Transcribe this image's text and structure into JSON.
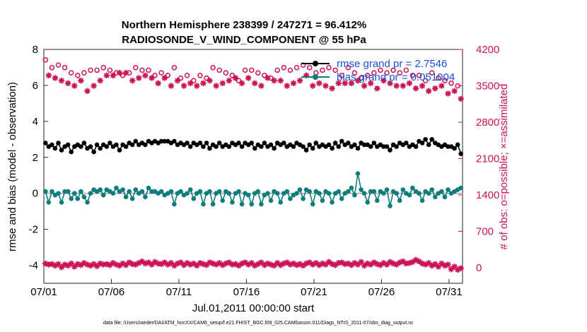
{
  "chart_data": {
    "type": "line",
    "title_line1": "Northern Hemisphere 238399 / 247271 = 96.412%",
    "title_line2": "RADIOSONDE_V_WIND_COMPONENT @ 55 hPa",
    "xlabel": "Jul.01,2011 00:00:00 start",
    "ylabel_left": "rmse and bias (model - observation)",
    "ylabel_right": "# of obs: o=possible; ×=assimilated",
    "footer": "data file: /Users/raeder/DAI/ATM_forcXX/CAM6_setup/f.e21.FHIST_BGC.f09_025.CAM6assim.011/Diags_NTrS_2011-07/obs_diag_output.nc",
    "xlim": [
      0,
      31
    ],
    "x_tick_values": [
      0,
      5,
      10,
      15,
      20,
      25,
      30
    ],
    "x_tick_labels": [
      "07/01",
      "07/06",
      "07/11",
      "07/16",
      "07/21",
      "07/26",
      "07/31"
    ],
    "ylim_left": [
      -5,
      8
    ],
    "y_ticks_left": [
      -4,
      -2,
      0,
      2,
      4,
      6,
      8
    ],
    "ylim_right": [
      -300,
      4200
    ],
    "y_ticks_right": [
      0,
      700,
      1400,
      2100,
      2800,
      3500,
      4200
    ],
    "rmse_grand": "2.7546",
    "bias_grand": "0.051004",
    "legend": [
      {
        "label": "rmse grand pr = 2.7546",
        "color": "#000000"
      },
      {
        "label": "bias grand pr = 0.051004",
        "color": "#0e7c7b"
      }
    ],
    "series": [
      {
        "name": "rmse",
        "color": "#000000",
        "axis": "left",
        "values": [
          2.8,
          2.6,
          2.7,
          2.5,
          2.8,
          2.4,
          2.6,
          2.7,
          2.3,
          2.6,
          2.7,
          2.6,
          2.8,
          2.5,
          2.6,
          2.3,
          2.7,
          2.5,
          2.7,
          2.6,
          2.8,
          2.6,
          2.7,
          2.4,
          2.7,
          2.6,
          2.8,
          2.7,
          2.9,
          2.7,
          2.8,
          2.7,
          2.9,
          2.8,
          2.9,
          2.8,
          2.9,
          2.9,
          2.9,
          2.8,
          2.9,
          2.7,
          2.8,
          2.7,
          2.8,
          2.6,
          2.8,
          2.7,
          2.8,
          2.6,
          2.8,
          2.5,
          2.7,
          2.6,
          2.8,
          2.6,
          2.7,
          2.6,
          2.8,
          2.7,
          2.8,
          2.6,
          2.8,
          2.7,
          2.8,
          2.5,
          2.7,
          2.6,
          2.8,
          2.6,
          2.7,
          2.5,
          2.8,
          2.7,
          2.8,
          2.6,
          2.7,
          2.6,
          2.8,
          2.7,
          2.6,
          2.4,
          2.7,
          2.5,
          2.8,
          2.6,
          2.7,
          2.6,
          2.7,
          2.5,
          2.8,
          2.6,
          2.9,
          2.7,
          2.8,
          2.6,
          2.7,
          2.5,
          2.8,
          2.7,
          2.7,
          2.6,
          2.8,
          2.6,
          2.7,
          2.6,
          2.6,
          2.4,
          2.7,
          2.6,
          2.8,
          2.7,
          2.8,
          2.6,
          2.7,
          2.6,
          2.9,
          2.8,
          3.0,
          2.7,
          3.0,
          2.8,
          2.7,
          2.6,
          2.7,
          2.6,
          2.6,
          2.5,
          2.7,
          2.2
        ]
      },
      {
        "name": "bias",
        "color": "#0e7c7b",
        "axis": "left",
        "values": [
          0.1,
          -0.5,
          0.1,
          -0.1,
          0.0,
          -0.5,
          0.1,
          0.1,
          -0.3,
          0.0,
          -0.3,
          0.1,
          -0.2,
          -0.5,
          0.0,
          0.2,
          0.1,
          0.2,
          -0.1,
          0.2,
          0.1,
          0.0,
          0.3,
          0.1,
          0.2,
          -0.2,
          0.1,
          -0.3,
          0.2,
          0.0,
          0.1,
          -0.2,
          0.3,
          0.1,
          0.1,
          0.0,
          0.1,
          -0.1,
          0.0,
          0.1,
          -0.6,
          0.0,
          0.1,
          -0.1,
          0.0,
          0.2,
          -0.3,
          0.0,
          0.1,
          -0.6,
          0.0,
          0.1,
          -0.6,
          0.0,
          0.1,
          -0.4,
          0.1,
          0.0,
          -0.5,
          0.0,
          0.1,
          -0.6,
          0.0,
          -0.1,
          -0.6,
          0.0,
          0.1,
          -0.6,
          -0.1,
          0.0,
          -0.4,
          0.1,
          0.0,
          -0.5,
          0.0,
          0.1,
          -0.3,
          -0.1,
          0.0,
          0.2,
          -0.3,
          0.2,
          0.1,
          -0.6,
          0.1,
          0.0,
          -0.4,
          0.1,
          0.0,
          -0.5,
          0.0,
          0.1,
          -0.3,
          0.0,
          0.1,
          0.3,
          -0.1,
          1.1,
          0.2,
          0.0,
          -0.5,
          0.1,
          0.1,
          -0.4,
          0.1,
          0.0,
          0.2,
          -0.7,
          0.1,
          0.0,
          -0.4,
          0.2,
          0.0,
          -0.1,
          0.3,
          0.1,
          0.0,
          -0.4,
          0.1,
          0.0,
          0.2,
          -0.2,
          0.0,
          0.1,
          -0.2,
          0.2,
          0.0,
          0.1,
          0.2,
          0.3
        ]
      },
      {
        "name": "obs possible",
        "color": "#cc1155",
        "axis": "right",
        "values": [
          4000,
          3800,
          3850,
          3650,
          3900,
          3700,
          3850,
          3600,
          3750,
          3500,
          3700,
          3850,
          3750,
          3550,
          3800,
          3650,
          3800,
          3750,
          3850,
          3700,
          3800,
          3650,
          3750,
          3600,
          3700,
          3850,
          3750,
          3800,
          3850,
          3900,
          3800,
          3950,
          3800,
          3850,
          3700,
          3850,
          3750,
          3800,
          3700,
          3900,
          3850,
          3750,
          3650,
          3800,
          3700,
          3850,
          3600,
          3750,
          3700,
          3800,
          3650,
          3800,
          3850,
          3700,
          3800,
          3650,
          3750,
          3800,
          3700,
          3850,
          3600,
          3750,
          3800,
          3700,
          3800,
          3650,
          3750,
          3850,
          3700,
          3800,
          3650,
          3700,
          3800,
          3700,
          3850,
          3750,
          3800,
          3650,
          3850,
          3750,
          3900,
          3700,
          3850,
          3600,
          3750,
          3700,
          3800,
          3650,
          3850,
          3700,
          3800,
          3750,
          3700,
          3650,
          3850,
          3700,
          3750,
          3800,
          3650,
          3850,
          3700,
          3800,
          3750,
          3650,
          3800,
          3700,
          3750,
          3600,
          3800,
          3700,
          3750,
          3650,
          3800,
          3600,
          3700,
          3550,
          3700,
          3650,
          3600,
          3550,
          3750,
          3500,
          3650,
          3500,
          3600,
          3450,
          3550,
          3400,
          3500,
          3450
        ]
      },
      {
        "name": "obs assimilated",
        "color": "#cc1155",
        "axis": "right",
        "values": [
          3900,
          3700,
          3600,
          3650,
          3550,
          3600,
          3450,
          3550,
          3600,
          3500,
          3450,
          3600,
          3550,
          3400,
          3650,
          3500,
          3550,
          3600,
          3650,
          3700,
          3750,
          3700,
          3650,
          3750,
          3700,
          3750,
          3650,
          3600,
          3700,
          3650,
          3600,
          3700,
          3550,
          3650,
          3600,
          3550,
          3600,
          3650,
          3600,
          3500,
          3650,
          3600,
          3550,
          3500,
          3600,
          3550,
          3650,
          3500,
          3600,
          3550,
          3650,
          3600,
          3550,
          3500,
          3600,
          3550,
          3650,
          3600,
          3550,
          3650,
          3600,
          3550,
          3500,
          3650,
          3600,
          3550,
          3600,
          3500,
          3550,
          3650,
          3700,
          3600,
          3450,
          3600,
          3550,
          3500,
          3650,
          3550,
          3450,
          3600,
          3650,
          3700,
          3550,
          3500,
          3600,
          3550,
          3650,
          3500,
          3550,
          3450,
          3600,
          3550,
          3500,
          3550,
          3600,
          3550,
          3500,
          3600,
          3550,
          3500,
          3450,
          3550,
          3500,
          3450,
          3550,
          3600,
          3500,
          3550,
          3600,
          3500,
          3550,
          3500,
          3450,
          3550,
          3500,
          3450,
          3550,
          3500,
          3450,
          3400,
          3550,
          3450,
          3400,
          3500,
          3450,
          3350,
          3300,
          3400,
          3300,
          3250
        ]
      },
      {
        "name": "obs possible (lower)",
        "color": "#cc1155",
        "axis": "right",
        "values": [
          80,
          60,
          70,
          40,
          70,
          10,
          60,
          40,
          80,
          20,
          70,
          50,
          90,
          60,
          40,
          70,
          30,
          80,
          60,
          70,
          50,
          90,
          60,
          40,
          80,
          50,
          100,
          70,
          60,
          90,
          120,
          80,
          100,
          60,
          110,
          80,
          70,
          100,
          60,
          90,
          40,
          80,
          100,
          50,
          90,
          60,
          80,
          40,
          90,
          70,
          50,
          100,
          80,
          60,
          90,
          50,
          80,
          100,
          60,
          70,
          40,
          80,
          100,
          60,
          90,
          40,
          70,
          100,
          50,
          80,
          60,
          40,
          90,
          50,
          80,
          100,
          60,
          80,
          50,
          70,
          40,
          80,
          100,
          60,
          90,
          50,
          80,
          60,
          110,
          70,
          50,
          90,
          100,
          70,
          80,
          50,
          90,
          60,
          110,
          40,
          80,
          60,
          100,
          70,
          50,
          90,
          60,
          110,
          80,
          60,
          100,
          120,
          80,
          90,
          110,
          150,
          120,
          80,
          60,
          90,
          40,
          70,
          20,
          80,
          40,
          60,
          -30,
          20,
          -40,
          -10
        ]
      }
    ]
  }
}
